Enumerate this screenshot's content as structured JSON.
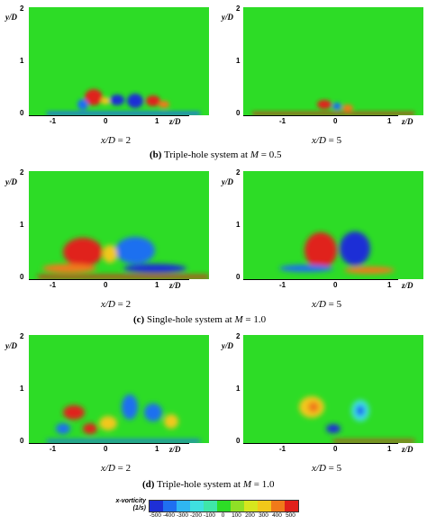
{
  "panels": [
    {
      "id": "b-x2",
      "x_label_var": "x/D",
      "x_label_value": "= 2",
      "y_ticks": [
        "2",
        "1",
        "0"
      ],
      "y_label": "y/D",
      "z_ticks": [
        "-1",
        "0",
        "1"
      ],
      "z_label": "z/D"
    },
    {
      "id": "b-x5",
      "x_label_var": "x/D",
      "x_label_value": "= 5",
      "y_ticks": [
        "2",
        "1",
        "0"
      ],
      "y_label": "y/D",
      "z_ticks": [
        "-1",
        "0",
        "1"
      ],
      "z_label": "z/D"
    },
    {
      "id": "c-x2",
      "x_label_var": "x/D",
      "x_label_value": "= 2",
      "y_ticks": [
        "2",
        "1",
        "0"
      ],
      "y_label": "y/D",
      "z_ticks": [
        "-1",
        "0",
        "1"
      ],
      "z_label": "z/D"
    },
    {
      "id": "c-x5",
      "x_label_var": "x/D",
      "x_label_value": "= 5",
      "y_ticks": [
        "2",
        "1",
        "0"
      ],
      "y_label": "y/D",
      "z_ticks": [
        "-1",
        "0",
        "1"
      ],
      "z_label": "z/D"
    },
    {
      "id": "d-x2",
      "x_label_var": "x/D",
      "x_label_value": "= 2",
      "y_ticks": [
        "2",
        "1",
        "0"
      ],
      "y_label": "y/D",
      "z_ticks": [
        "-1",
        "0",
        "1"
      ],
      "z_label": "z/D"
    },
    {
      "id": "d-x5",
      "x_label_var": "x/D",
      "x_label_value": "= 5",
      "y_ticks": [
        "2",
        "1",
        "0"
      ],
      "y_label": "y/D",
      "z_ticks": [
        "-1",
        "0",
        "1"
      ],
      "z_label": "z/D"
    }
  ],
  "captions": {
    "b": {
      "letter": "(b)",
      "text": " Triple-hole system at ",
      "var": "M",
      "value": " = 0.5"
    },
    "c": {
      "letter": "(c)",
      "text": " Single-hole system at ",
      "var": "M",
      "value": " = 1.0"
    },
    "d": {
      "letter": "(d)",
      "text": " Triple-hole system at ",
      "var": "M",
      "value": " = 1.0"
    }
  },
  "colorbar": {
    "title": "x-vorticity",
    "unit": "(1/s)",
    "ticks": [
      "-500",
      "-400",
      "-300",
      "-200",
      "-100",
      "0",
      "100",
      "200",
      "300",
      "400",
      "500"
    ],
    "colors": [
      "#1e2fd6",
      "#1f6ff0",
      "#2fb6f2",
      "#3fe0e0",
      "#3fe6a8",
      "#2ddc26",
      "#8fe026",
      "#d6e61e",
      "#f2c81a",
      "#f07a1a",
      "#e0201a"
    ]
  }
}
